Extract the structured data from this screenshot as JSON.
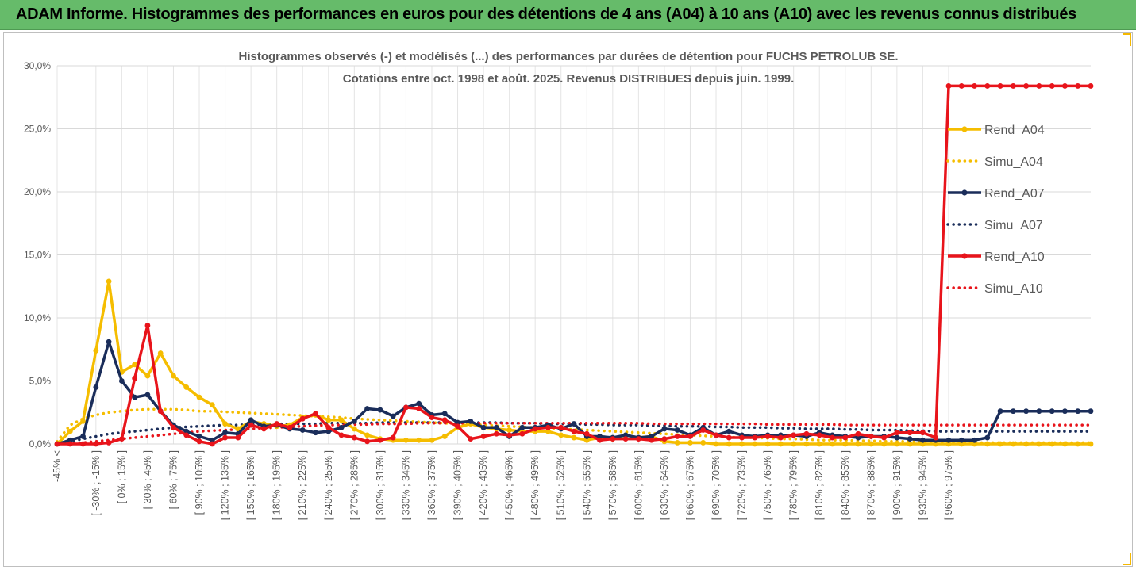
{
  "header": {
    "title": "ADAM Informe. Histogrammes des performances en euros pour des détentions de 4 ans (A04) à 10 ans (A10) avec les revenus connus distribués"
  },
  "chart_data": {
    "type": "line",
    "title": [
      "Histogrammes observés (-) et modélisés (...) des performances par durées de détention pour FUCHS PETROLUB SE.",
      "Cotations entre oct. 1998 et août. 2025. Revenus DISTRIBUES depuis juin. 1999."
    ],
    "ylim": [
      0,
      30
    ],
    "y_ticks": [
      "0,0%",
      "5,0%",
      "10,0%",
      "15,0%",
      "20,0%",
      "25,0%",
      "30,0%"
    ],
    "y_tick_values": [
      0,
      5,
      10,
      15,
      20,
      25,
      30
    ],
    "x_tick_labels": [
      "-45% <",
      "[ -30% ; -15% ]",
      "[ 0% ; 15% ]",
      "[ 30% ; 45% ]",
      "[ 60% ; 75% ]",
      "[ 90% ; 105% ]",
      "[ 120% ; 135% ]",
      "[ 150% ; 165% ]",
      "[ 180% ; 195% ]",
      "[ 210% ; 225% ]",
      "[ 240% ; 255% ]",
      "[ 270% ; 285% ]",
      "[ 300% ; 315% ]",
      "[ 330% ; 345% ]",
      "[ 360% ; 375% ]",
      "[ 390% ; 405% ]",
      "[ 420% ; 435% ]",
      "[ 450% ; 465% ]",
      "[ 480% ; 495% ]",
      "[ 510% ; 525% ]",
      "[ 540% ; 555% ]",
      "[ 570% ; 585% ]",
      "[ 600% ; 615% ]",
      "[ 630% ; 645% ]",
      "[ 660% ; 675% ]",
      "[ 690% ; 705% ]",
      "[ 720% ; 735% ]",
      "[ 750% ; 765% ]",
      "[ 780% ; 795% ]",
      "[ 810% ; 825% ]",
      "[ 840% ; 855% ]",
      "[ 870% ; 885% ]",
      "[ 900% ; 915% ]",
      "[ 930% ; 945% ]",
      "[ 960% ; 975% ]"
    ],
    "grid": true,
    "legend_position": "right",
    "series": [
      {
        "name": "Rend_A04",
        "style": "solid",
        "color": "#f5bd00",
        "values": [
          0.0,
          1.0,
          1.8,
          7.4,
          12.9,
          5.7,
          6.3,
          5.4,
          7.2,
          5.4,
          4.5,
          3.7,
          3.1,
          1.6,
          1.2,
          1.8,
          1.6,
          1.4,
          1.5,
          2.1,
          2.3,
          1.9,
          1.9,
          1.2,
          0.7,
          0.4,
          0.3,
          0.3,
          0.3,
          0.3,
          0.6,
          1.3,
          1.6,
          1.3,
          1.2,
          1.1,
          1.0,
          1.0,
          1.0,
          0.7,
          0.5,
          0.3,
          0.5,
          0.4,
          0.7,
          0.5,
          0.6,
          0.2,
          0.1,
          0.1,
          0.1,
          0.0,
          0.0,
          0.0,
          0.0,
          0.0,
          0.0,
          0.0,
          0.0,
          0.0,
          0.0,
          0.0,
          0.0,
          0.0,
          0.0,
          0.0,
          0.0,
          0.0,
          0.0,
          0.0,
          0.0,
          0.0,
          0.0,
          0.0,
          0.0,
          0.0,
          0.0,
          0.0,
          0.0,
          0.0,
          0.0
        ]
      },
      {
        "name": "Simu_A04",
        "style": "dotted",
        "color": "#f5bd00",
        "values": [
          0.2,
          1.5,
          2.0,
          2.3,
          2.5,
          2.6,
          2.7,
          2.75,
          2.75,
          2.75,
          2.7,
          2.6,
          2.6,
          2.55,
          2.5,
          2.45,
          2.4,
          2.35,
          2.3,
          2.25,
          2.2,
          2.15,
          2.1,
          2.0,
          1.95,
          1.9,
          1.85,
          1.8,
          1.75,
          1.7,
          1.65,
          1.6,
          1.55,
          1.5,
          1.45,
          1.4,
          1.35,
          1.3,
          1.25,
          1.2,
          1.15,
          1.1,
          1.05,
          1.0,
          0.95,
          0.9,
          0.85,
          0.8,
          0.75,
          0.7,
          0.65,
          0.6,
          0.55,
          0.5,
          0.5,
          0.45,
          0.4,
          0.4,
          0.35,
          0.3,
          0.3,
          0.3,
          0.25,
          0.25,
          0.2,
          0.2,
          0.2,
          0.15,
          0.15,
          0.15,
          0.1,
          0.1,
          0.1,
          0.1,
          0.1,
          0.1,
          0.1,
          0.1,
          0.1,
          0.1,
          0.1
        ]
      },
      {
        "name": "Rend_A07",
        "style": "solid",
        "color": "#1a2d5a",
        "values": [
          0.0,
          0.3,
          0.6,
          4.5,
          8.1,
          5.0,
          3.7,
          3.9,
          2.6,
          1.5,
          1.0,
          0.6,
          0.3,
          0.9,
          0.8,
          1.9,
          1.4,
          1.5,
          1.2,
          1.1,
          0.9,
          1.0,
          1.3,
          1.8,
          2.8,
          2.7,
          2.2,
          2.9,
          3.2,
          2.3,
          2.4,
          1.7,
          1.8,
          1.3,
          1.3,
          0.6,
          1.3,
          1.3,
          1.5,
          1.2,
          1.6,
          0.6,
          0.6,
          0.5,
          0.7,
          0.5,
          0.6,
          1.2,
          1.1,
          0.7,
          1.3,
          0.7,
          1.0,
          0.7,
          0.6,
          0.7,
          0.7,
          0.7,
          0.6,
          0.9,
          0.7,
          0.6,
          0.5,
          0.6,
          0.6,
          0.5,
          0.4,
          0.3,
          0.3,
          0.3,
          0.3,
          0.3,
          0.5,
          2.6,
          2.6,
          2.6,
          2.6,
          2.6,
          2.6,
          2.6,
          2.6
        ]
      },
      {
        "name": "Simu_A07",
        "style": "dotted",
        "color": "#1a2d5a",
        "values": [
          0.0,
          0.2,
          0.4,
          0.6,
          0.8,
          0.9,
          1.0,
          1.1,
          1.2,
          1.3,
          1.35,
          1.4,
          1.45,
          1.5,
          1.5,
          1.55,
          1.55,
          1.6,
          1.6,
          1.6,
          1.6,
          1.65,
          1.65,
          1.65,
          1.65,
          1.7,
          1.7,
          1.7,
          1.7,
          1.7,
          1.7,
          1.7,
          1.7,
          1.7,
          1.7,
          1.65,
          1.65,
          1.65,
          1.6,
          1.6,
          1.6,
          1.55,
          1.55,
          1.5,
          1.5,
          1.5,
          1.45,
          1.45,
          1.4,
          1.4,
          1.4,
          1.35,
          1.35,
          1.3,
          1.3,
          1.3,
          1.25,
          1.25,
          1.2,
          1.2,
          1.2,
          1.15,
          1.15,
          1.1,
          1.1,
          1.1,
          1.05,
          1.05,
          1.0,
          1.0,
          1.0,
          1.0,
          1.0,
          1.0,
          1.0,
          1.0,
          1.0,
          1.0,
          1.0,
          1.0,
          1.0
        ]
      },
      {
        "name": "Rend_A10",
        "style": "solid",
        "color": "#e8141b",
        "values": [
          0.0,
          0.0,
          0.0,
          0.0,
          0.1,
          0.4,
          5.2,
          9.4,
          2.6,
          1.3,
          0.7,
          0.2,
          0.0,
          0.5,
          0.5,
          1.5,
          1.2,
          1.6,
          1.3,
          2.0,
          2.4,
          1.3,
          0.7,
          0.5,
          0.2,
          0.3,
          0.5,
          2.9,
          2.8,
          2.1,
          1.9,
          1.4,
          0.4,
          0.6,
          0.8,
          0.7,
          0.8,
          1.2,
          1.3,
          1.3,
          1.0,
          0.8,
          0.3,
          0.4,
          0.4,
          0.4,
          0.3,
          0.4,
          0.6,
          0.6,
          1.1,
          0.7,
          0.5,
          0.5,
          0.5,
          0.6,
          0.5,
          0.7,
          0.8,
          0.7,
          0.5,
          0.5,
          0.8,
          0.6,
          0.5,
          0.9,
          0.9,
          0.9,
          0.5,
          28.4,
          28.4,
          28.4,
          28.4,
          28.4,
          28.4,
          28.4,
          28.4,
          28.4,
          28.4,
          28.4,
          28.4
        ]
      },
      {
        "name": "Simu_A10",
        "style": "dotted",
        "color": "#e8141b",
        "values": [
          0.0,
          0.05,
          0.1,
          0.2,
          0.3,
          0.4,
          0.5,
          0.6,
          0.7,
          0.8,
          0.9,
          1.0,
          1.05,
          1.1,
          1.15,
          1.2,
          1.25,
          1.3,
          1.35,
          1.4,
          1.45,
          1.5,
          1.5,
          1.55,
          1.55,
          1.6,
          1.6,
          1.6,
          1.65,
          1.65,
          1.65,
          1.65,
          1.65,
          1.65,
          1.65,
          1.65,
          1.65,
          1.65,
          1.65,
          1.65,
          1.65,
          1.65,
          1.65,
          1.65,
          1.65,
          1.65,
          1.6,
          1.6,
          1.6,
          1.6,
          1.6,
          1.6,
          1.6,
          1.6,
          1.6,
          1.55,
          1.55,
          1.55,
          1.55,
          1.55,
          1.55,
          1.5,
          1.5,
          1.5,
          1.5,
          1.5,
          1.5,
          1.5,
          1.5,
          1.5,
          1.5,
          1.5,
          1.5,
          1.5,
          1.5,
          1.5,
          1.5,
          1.5,
          1.5,
          1.5,
          1.5
        ]
      }
    ]
  }
}
